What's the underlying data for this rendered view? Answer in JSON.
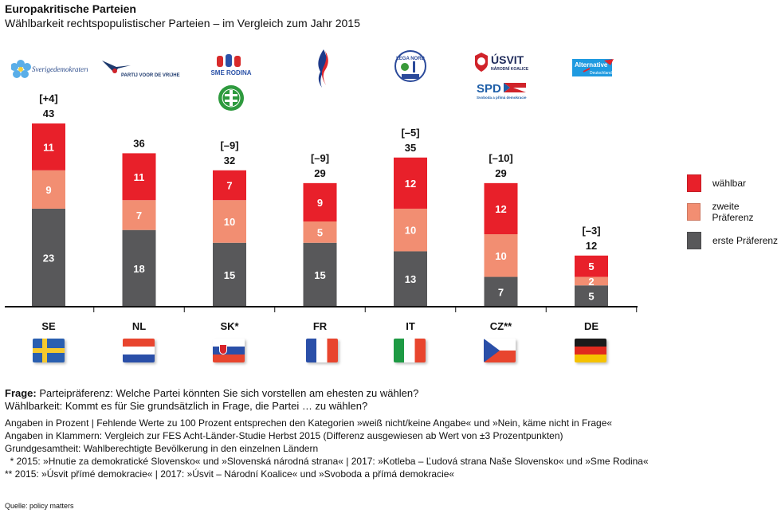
{
  "header": {
    "title": "Europakritische Parteien",
    "subtitle": "Wählbarkeit rechtspopulistischer Parteien – im Vergleich zum Jahr 2015"
  },
  "logos": [
    {
      "country": "SE",
      "parties": [
        "Sverigedemokraterna"
      ],
      "icon": "sweden-democrats-flower-logo"
    },
    {
      "country": "NL",
      "parties": [
        "PARTIJ VOOR DE VRIJHEID"
      ],
      "icon": "pvv-seagull-logo"
    },
    {
      "country": "SK",
      "parties": [
        "SME RODINA",
        "Kotleba"
      ],
      "icon": "sme-rodina-hands-logo"
    },
    {
      "country": "FR",
      "parties": [
        "Front National"
      ],
      "icon": "fn-flame-logo"
    },
    {
      "country": "IT",
      "parties": [
        "LEGA NORD SALVINI"
      ],
      "icon": "lega-nord-logo"
    },
    {
      "country": "CZ",
      "parties": [
        "ÚSVIT NÁRODNÍ KOALICE",
        "SPD Svoboda a přímá demokracie"
      ],
      "icon": "usvit-spd-logo"
    },
    {
      "country": "DE",
      "parties": [
        "Alternative für Deutschland"
      ],
      "icon": "afd-logo"
    }
  ],
  "chart_data": {
    "type": "bar",
    "stacked": true,
    "title": "Europakritische Parteien",
    "subtitle": "Wählbarkeit rechtspopulistischer Parteien – im Vergleich zum Jahr 2015",
    "xlabel": "",
    "ylabel": "",
    "ylim": [
      0,
      45
    ],
    "grid": false,
    "legend_position": "right",
    "categories": [
      "SE",
      "NL",
      "SK*",
      "FR",
      "IT",
      "CZ**",
      "DE"
    ],
    "series": [
      {
        "name": "erste Präferenz",
        "color": "#58585a",
        "values": [
          23,
          18,
          15,
          15,
          13,
          7,
          5
        ]
      },
      {
        "name": "zweite Präferenz",
        "color": "#f28e72",
        "values": [
          9,
          7,
          10,
          5,
          10,
          10,
          2
        ]
      },
      {
        "name": "wählbar",
        "color": "#e8202a",
        "values": [
          11,
          11,
          7,
          9,
          12,
          12,
          5
        ]
      }
    ],
    "totals": [
      43,
      36,
      32,
      29,
      35,
      29,
      12
    ],
    "change_vs_2015": [
      "[+4]",
      "",
      "[–9]",
      "[–9]",
      "[–5]",
      "[–10]",
      "[–3]"
    ],
    "legend": [
      "wählbar",
      "zweite Präferenz",
      "erste Präferenz"
    ]
  },
  "flags": [
    {
      "country": "SE",
      "icon": "sweden-flag-icon"
    },
    {
      "country": "NL",
      "icon": "netherlands-flag-icon"
    },
    {
      "country": "SK",
      "icon": "slovakia-flag-icon"
    },
    {
      "country": "FR",
      "icon": "france-flag-icon"
    },
    {
      "country": "IT",
      "icon": "italy-flag-icon"
    },
    {
      "country": "CZ",
      "icon": "czech-flag-icon"
    },
    {
      "country": "DE",
      "icon": "germany-flag-icon"
    }
  ],
  "notes": {
    "frage_label": "Frage:",
    "frage_text": " Parteipräferenz: Welche Partei könnten Sie sich vorstellen am ehesten zu wählen?",
    "waehlbarkeit": "Wählbarkeit: Kommt es für Sie grundsätzlich in Frage, die Partei … zu wählen?",
    "line1": "Angaben in Prozent | Fehlende Werte zu 100 Prozent entsprechen den Kategorien »weiß nicht/keine Angabe« und »Nein, käme nicht in Frage«",
    "line2": "Angaben in Klammern: Vergleich zur FES Acht-Länder-Studie Herbst 2015 (Differenz ausgewiesen ab Wert von ±3 Prozentpunkten)",
    "line3": "Grundgesamtheit: Wahlberechtigte Bevölkerung in den einzelnen Ländern",
    "footnote1": "  * 2015: »Hnutie za demokratické Slovensko« und »Slovenská národná strana« | 2017: »Kotleba – Ľudová strana Naše Slovensko« und »Sme Rodina«",
    "footnote2": "** 2015: »Úsvit přímé demokracie« | 2017: »Úsvit – Národní Koalice« und »Svoboda a přímá demokracie«"
  },
  "source": "Quelle: policy matters"
}
